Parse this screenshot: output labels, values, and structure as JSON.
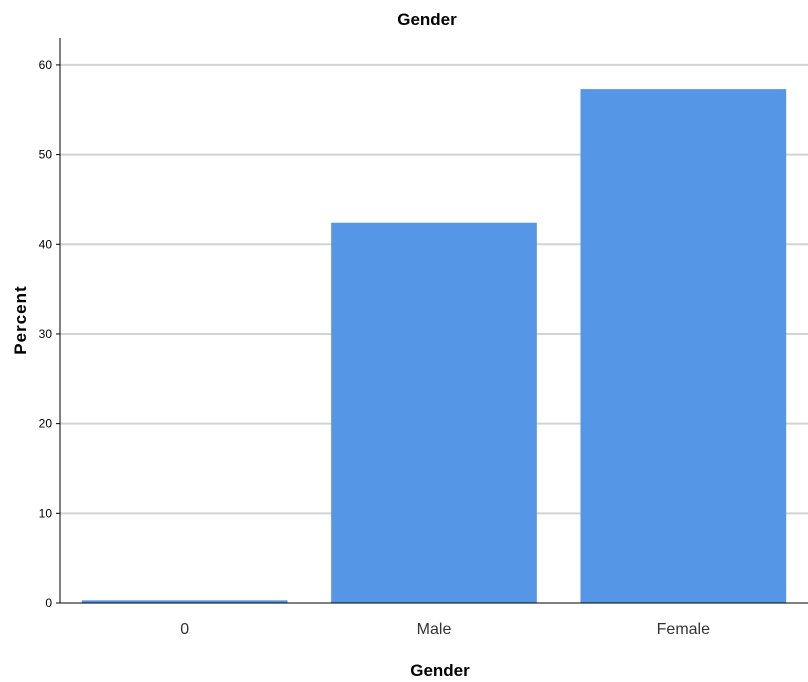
{
  "chart_data": {
    "type": "bar",
    "title": "Gender",
    "xlabel": "Gender",
    "ylabel": "Percent",
    "categories": [
      "0",
      "Male",
      "Female"
    ],
    "values": [
      0.3,
      42.4,
      57.3
    ],
    "ylim": [
      0,
      63
    ],
    "yticks": [
      "0",
      "10",
      "20",
      "30",
      "40",
      "50",
      "60"
    ],
    "grid": true,
    "bar_color": "#5596E6",
    "grid_color": "#D3D3D3",
    "axis_color": "#000000"
  }
}
